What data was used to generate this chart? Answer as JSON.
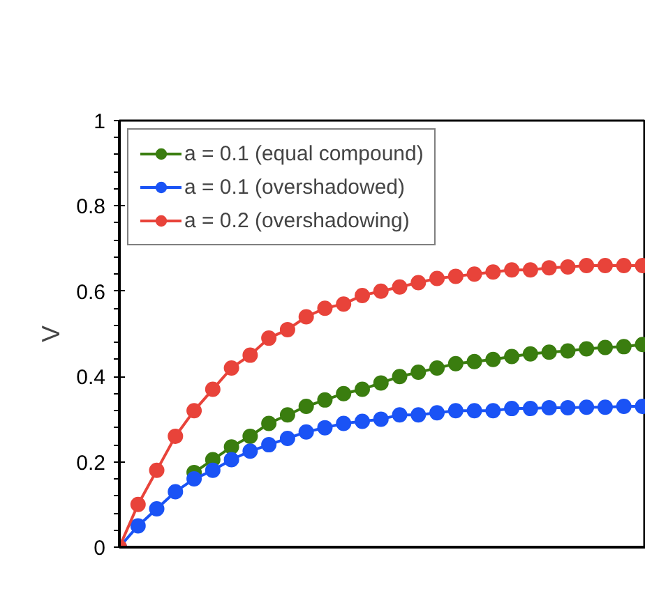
{
  "chart_data": {
    "type": "line",
    "ylabel": "V",
    "categories": [
      null,
      null,
      null,
      null,
      null,
      null,
      null,
      null,
      null,
      null,
      null,
      null,
      null,
      null,
      null,
      null,
      null,
      null,
      null,
      null,
      null,
      null,
      null,
      null,
      null,
      null,
      null,
      null,
      null
    ],
    "ylim": [
      0,
      1
    ],
    "yticks": [
      0,
      0.2,
      0.4,
      0.6,
      0.8,
      1
    ],
    "grid": false,
    "legend": "top left",
    "marker": "circle",
    "line_style": "solid",
    "series": [
      {
        "name": "a = 0.1 (equal compound)",
        "color": "#3a7d0f",
        "values": [
          null,
          null,
          null,
          null,
          0.175,
          0.205,
          0.235,
          0.26,
          0.29,
          0.31,
          0.33,
          0.345,
          0.36,
          0.37,
          0.385,
          0.4,
          0.41,
          0.42,
          0.43,
          0.435,
          0.44,
          0.447,
          0.453,
          0.457,
          0.46,
          0.465,
          0.468,
          0.47,
          0.475
        ]
      },
      {
        "name": "a = 0.1 (overshadowed)",
        "color": "#1a53f5",
        "values": [
          0,
          0.05,
          0.09,
          0.13,
          0.16,
          0.18,
          0.205,
          0.225,
          0.24,
          0.255,
          0.27,
          0.28,
          0.29,
          0.295,
          0.3,
          0.31,
          0.31,
          0.315,
          0.32,
          0.32,
          0.32,
          0.325,
          0.325,
          0.327,
          0.327,
          0.328,
          0.328,
          0.33,
          0.33
        ]
      },
      {
        "name": "a = 0.2 (overshadowing)",
        "color": "#e8433a",
        "values": [
          0,
          0.1,
          0.18,
          0.26,
          0.32,
          0.37,
          0.42,
          0.45,
          0.49,
          0.51,
          0.54,
          0.56,
          0.57,
          0.59,
          0.6,
          0.61,
          0.62,
          0.63,
          0.635,
          0.64,
          0.645,
          0.65,
          0.65,
          0.655,
          0.657,
          0.66,
          0.66,
          0.66,
          0.66
        ]
      }
    ]
  }
}
